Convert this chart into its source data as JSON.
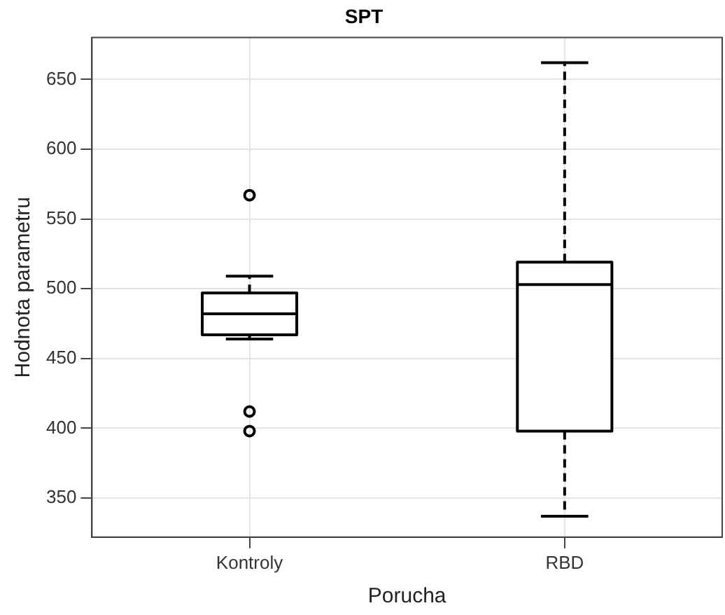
{
  "chart_data": {
    "type": "box",
    "title": "SPT",
    "xlabel": "Porucha",
    "ylabel": "Hodnota parametru",
    "categories": [
      "Kontroly",
      "RBD"
    ],
    "boxes": [
      {
        "low": 464,
        "q1": 467,
        "median": 482,
        "q3": 497,
        "high": 509,
        "outliers": [
          567,
          412,
          398
        ]
      },
      {
        "low": 337,
        "q1": 398,
        "median": 503,
        "q3": 519,
        "high": 662
      }
    ],
    "color": "#000000",
    "ylim": [
      322,
      680
    ],
    "yticks": [
      350,
      400,
      450,
      500,
      550,
      600,
      650
    ],
    "grid": true,
    "line_style": "dashed",
    "marker": "circle"
  }
}
